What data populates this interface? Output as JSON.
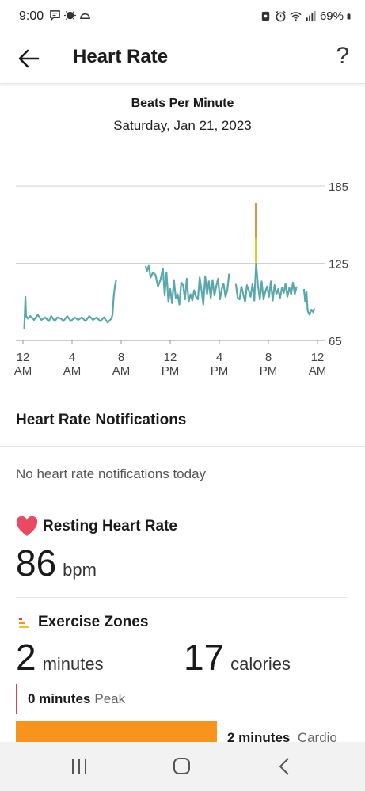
{
  "status_bar": {
    "time": "9:00",
    "battery_percent": "69%",
    "left_icons": [
      "message-icon",
      "weather-icon",
      "cloud-icon"
    ],
    "right_icons": [
      "nfc-icon",
      "alarm-icon",
      "wifi-icon",
      "signal-icon",
      "battery-icon"
    ]
  },
  "header": {
    "title": "Heart Rate",
    "help_label": "?"
  },
  "chart": {
    "title": "Beats Per Minute",
    "date": "Saturday, Jan 21, 2023"
  },
  "chart_data": {
    "type": "line",
    "title": "Beats Per Minute",
    "xlabel": "",
    "ylabel": "",
    "x_ticks": [
      {
        "top": "12",
        "bottom": "AM"
      },
      {
        "top": "4",
        "bottom": "AM"
      },
      {
        "top": "8",
        "bottom": "AM"
      },
      {
        "top": "12",
        "bottom": "PM"
      },
      {
        "top": "4",
        "bottom": "PM"
      },
      {
        "top": "8",
        "bottom": "PM"
      },
      {
        "top": "12",
        "bottom": "AM"
      }
    ],
    "y_ticks": [
      "185",
      "125",
      "65"
    ],
    "ylim": [
      65,
      185
    ],
    "xlim": [
      0,
      24
    ],
    "grid": true,
    "series_color": "#5aa8ab",
    "peak_colors": [
      "#e3904a",
      "#f2c12e"
    ],
    "segments": [
      [
        [
          0.1,
          74
        ],
        [
          0.15,
          86
        ],
        [
          0.2,
          99
        ],
        [
          0.25,
          84
        ],
        [
          0.4,
          82
        ],
        [
          0.6,
          84
        ],
        [
          0.9,
          81
        ],
        [
          1.2,
          85
        ],
        [
          1.5,
          81
        ],
        [
          1.8,
          83
        ],
        [
          2.1,
          80
        ],
        [
          2.3,
          84
        ],
        [
          2.6,
          80
        ],
        [
          2.8,
          83
        ],
        [
          3.1,
          82
        ],
        [
          3.3,
          80
        ],
        [
          3.6,
          84
        ],
        [
          3.9,
          80
        ],
        [
          4.2,
          83
        ],
        [
          4.5,
          81
        ],
        [
          4.8,
          83
        ],
        [
          5.1,
          80
        ],
        [
          5.4,
          84
        ],
        [
          5.7,
          81
        ],
        [
          6.0,
          83
        ],
        [
          6.3,
          80
        ],
        [
          6.6,
          83
        ],
        [
          6.9,
          79
        ],
        [
          7.2,
          82
        ],
        [
          7.3,
          85
        ],
        [
          7.4,
          100
        ],
        [
          7.5,
          108
        ],
        [
          7.6,
          112
        ]
      ],
      [
        [
          10.0,
          123
        ],
        [
          10.1,
          119
        ],
        [
          10.25,
          123
        ],
        [
          10.4,
          114
        ],
        [
          10.6,
          118
        ],
        [
          10.8,
          116
        ],
        [
          11.0,
          107
        ],
        [
          11.2,
          112
        ],
        [
          11.4,
          121
        ],
        [
          11.55,
          100
        ],
        [
          11.7,
          118
        ],
        [
          11.85,
          95
        ],
        [
          12.0,
          105
        ],
        [
          12.15,
          94
        ],
        [
          12.3,
          112
        ],
        [
          12.45,
          98
        ],
        [
          12.6,
          101
        ],
        [
          12.75,
          93
        ],
        [
          12.9,
          110
        ],
        [
          13.05,
          108
        ],
        [
          13.2,
          97
        ],
        [
          13.35,
          113
        ],
        [
          13.5,
          95
        ],
        [
          13.65,
          101
        ],
        [
          13.8,
          96
        ],
        [
          13.95,
          104
        ],
        [
          14.1,
          99
        ],
        [
          14.25,
          97
        ],
        [
          14.4,
          114
        ],
        [
          14.55,
          104
        ],
        [
          14.7,
          93
        ],
        [
          14.85,
          115
        ],
        [
          15.0,
          101
        ],
        [
          15.15,
          111
        ],
        [
          15.3,
          98
        ],
        [
          15.45,
          112
        ],
        [
          15.6,
          100
        ],
        [
          15.75,
          107
        ],
        [
          15.9,
          113
        ],
        [
          16.05,
          97
        ],
        [
          16.2,
          105
        ],
        [
          16.35,
          109
        ],
        [
          16.5,
          99
        ],
        [
          16.65,
          104
        ],
        [
          16.8,
          117
        ]
      ],
      [
        [
          17.35,
          109
        ],
        [
          17.5,
          98
        ],
        [
          17.65,
          97
        ],
        [
          17.8,
          107
        ],
        [
          17.95,
          101
        ],
        [
          18.1,
          95
        ],
        [
          18.25,
          108
        ],
        [
          18.4,
          104
        ],
        [
          18.55,
          99
        ],
        [
          18.7,
          109
        ],
        [
          18.85,
          96
        ],
        [
          19.0,
          125
        ],
        [
          19.15,
          108
        ],
        [
          19.3,
          97
        ],
        [
          19.45,
          111
        ],
        [
          19.6,
          97
        ],
        [
          19.75,
          103
        ],
        [
          19.9,
          107
        ],
        [
          20.05,
          99
        ],
        [
          20.2,
          111
        ],
        [
          20.35,
          96
        ],
        [
          20.5,
          108
        ],
        [
          20.65,
          101
        ],
        [
          20.8,
          105
        ],
        [
          20.95,
          98
        ],
        [
          21.1,
          106
        ],
        [
          21.25,
          102
        ],
        [
          21.4,
          109
        ],
        [
          21.55,
          99
        ],
        [
          21.7,
          106
        ],
        [
          21.85,
          101
        ],
        [
          22.0,
          110
        ],
        [
          22.15,
          101
        ],
        [
          22.3,
          107
        ]
      ],
      [
        [
          22.9,
          105
        ],
        [
          23.0,
          95
        ],
        [
          23.1,
          103
        ],
        [
          23.2,
          88
        ],
        [
          23.35,
          85
        ],
        [
          23.5,
          89
        ],
        [
          23.65,
          87
        ],
        [
          23.75,
          90
        ]
      ]
    ],
    "peak": {
      "x": 19.0,
      "base": 125,
      "yellow_top": 145,
      "top": 172
    }
  },
  "notifications": {
    "heading": "Heart Rate Notifications",
    "empty_text": "No heart rate notifications today"
  },
  "resting": {
    "heading": "Resting Heart Rate",
    "value": "86",
    "unit": "bpm",
    "icon": "heart-icon",
    "icon_color": "#e84a5f"
  },
  "exercise": {
    "heading": "Exercise Zones",
    "icon": "zones-icon",
    "minutes_value": "2",
    "minutes_unit": "minutes",
    "calories_value": "17",
    "calories_unit": "calories",
    "peak": {
      "value": "0 minutes",
      "label": "Peak",
      "color": "#e23b4b"
    },
    "cardio": {
      "value": "2 minutes",
      "label": "Cardio",
      "color": "#f7941d"
    }
  },
  "nav": {
    "items": [
      "recent-apps-icon",
      "home-icon",
      "back-nav-icon"
    ]
  }
}
